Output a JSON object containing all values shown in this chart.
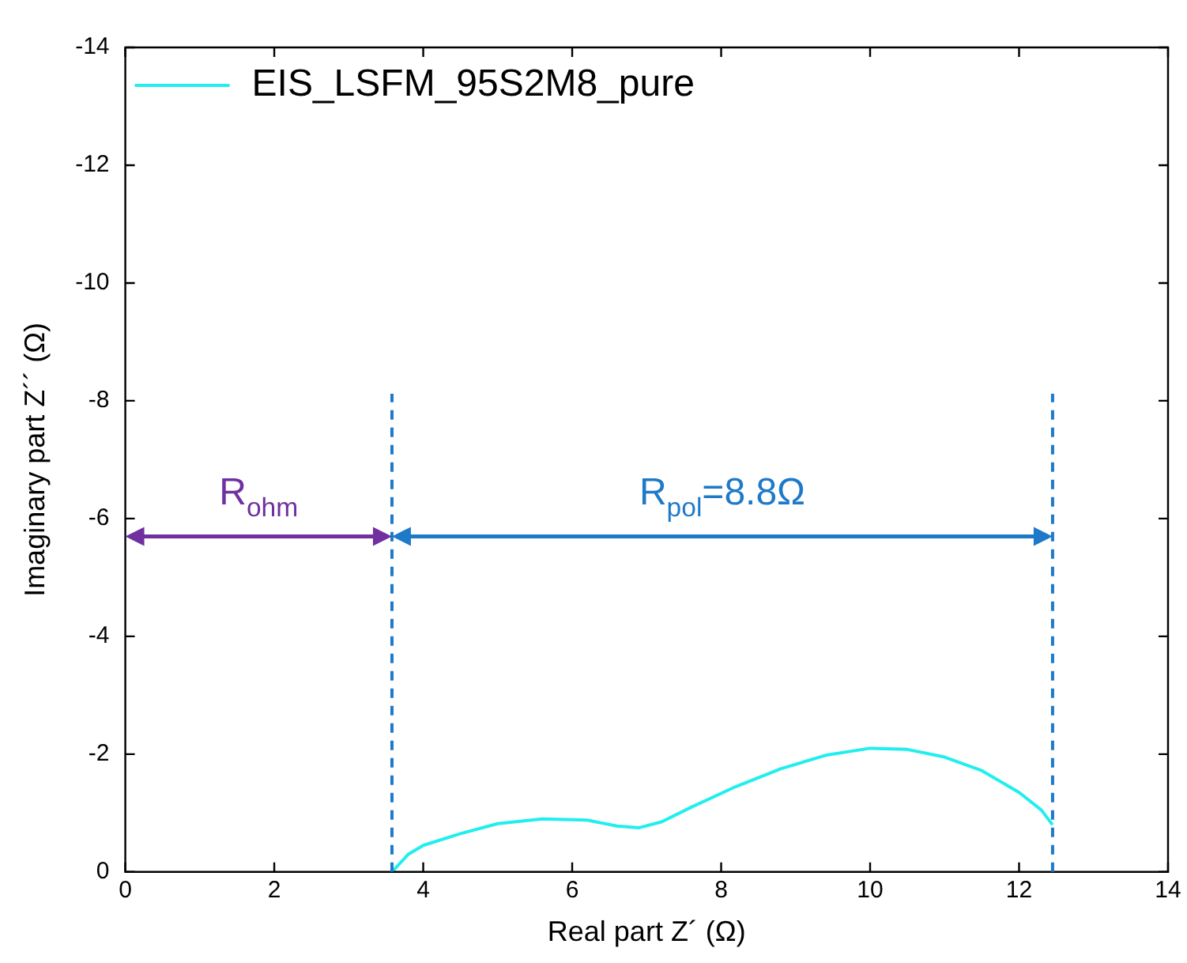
{
  "chart_data": {
    "type": "line",
    "xlabel": "Real part Z´ (Ω)",
    "ylabel": "Imaginary part Z´´ (Ω)",
    "xlim": [
      0,
      14
    ],
    "xticks": [
      0,
      2,
      4,
      6,
      8,
      10,
      12,
      14
    ],
    "ylim": [
      0,
      -14
    ],
    "yticks": [
      0,
      -2,
      -4,
      -6,
      -8,
      -10,
      -12,
      -14
    ],
    "grid": false,
    "legend": "top left",
    "marker": "none",
    "line_style": "solid",
    "series": [
      {
        "name": "EIS_LSFM_95S2M8_pure",
        "color": "#22eeee",
        "x": [
          3.58,
          3.8,
          4.0,
          4.5,
          5.0,
          5.6,
          6.2,
          6.6,
          6.9,
          7.2,
          7.6,
          8.2,
          8.8,
          9.4,
          10.0,
          10.5,
          11.0,
          11.5,
          12.0,
          12.3,
          12.45
        ],
        "values": [
          0,
          -0.3,
          -0.45,
          -0.65,
          -0.82,
          -0.9,
          -0.88,
          -0.78,
          -0.75,
          -0.85,
          -1.1,
          -1.45,
          -1.75,
          -1.98,
          -2.1,
          -2.08,
          -1.95,
          -1.72,
          -1.35,
          -1.05,
          -0.8
        ]
      }
    ],
    "ref_lines": [
      {
        "axis": "x",
        "value": 3.58,
        "color": "#1e7ac8",
        "line_style": "dashed"
      },
      {
        "axis": "x",
        "value": 12.45,
        "color": "#1e7ac8",
        "line_style": "dashed"
      }
    ],
    "annotations": [
      "R$_{ohm}$",
      "R$_{pol}$=8.8Ω"
    ]
  }
}
